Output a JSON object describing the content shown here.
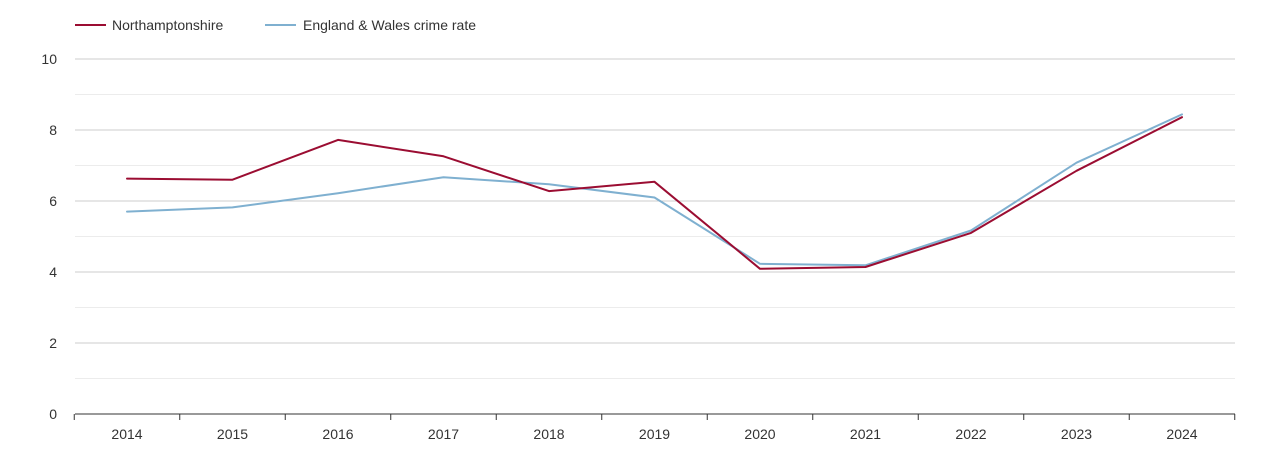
{
  "chart_data": {
    "type": "line",
    "title": "",
    "xlabel": "",
    "ylabel": "",
    "x": [
      "2014",
      "2015",
      "2016",
      "2017",
      "2018",
      "2019",
      "2020",
      "2021",
      "2022",
      "2023",
      "2024"
    ],
    "ylim": [
      0,
      10
    ],
    "yticks": [
      0,
      2,
      4,
      6,
      8,
      10
    ],
    "grid": true,
    "legend_position": "top-left",
    "series": [
      {
        "name": "Northamptonshire",
        "color": "#9b0d32",
        "values": [
          6.63,
          6.6,
          7.72,
          7.26,
          6.28,
          6.54,
          4.09,
          4.14,
          5.1,
          6.85,
          8.36
        ]
      },
      {
        "name": "England & Wales crime rate",
        "color": "#7fb0d0",
        "values": [
          5.7,
          5.82,
          6.22,
          6.67,
          6.47,
          6.1,
          4.23,
          4.19,
          5.17,
          7.08,
          8.44
        ]
      }
    ]
  }
}
